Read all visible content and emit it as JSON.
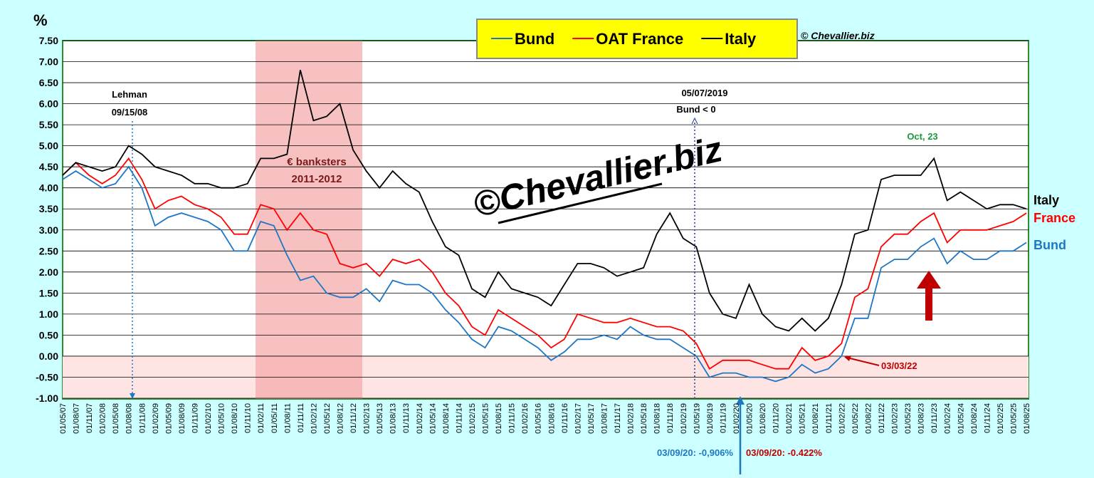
{
  "chart_data": {
    "type": "line",
    "y_unit": "%",
    "categories": [
      "01/05/07",
      "01/08/07",
      "01/11/07",
      "01/02/08",
      "01/05/08",
      "01/08/08",
      "01/11/08",
      "01/02/09",
      "01/05/09",
      "01/08/09",
      "01/11/09",
      "01/02/10",
      "01/05/10",
      "01/08/10",
      "01/11/10",
      "01/02/11",
      "01/05/11",
      "01/08/11",
      "01/11/11",
      "01/02/12",
      "01/05/12",
      "01/08/12",
      "01/11/12",
      "01/02/13",
      "01/05/13",
      "01/08/13",
      "01/11/13",
      "01/02/14",
      "01/05/14",
      "01/08/14",
      "01/11/14",
      "01/02/15",
      "01/05/15",
      "01/08/15",
      "01/11/15",
      "01/02/16",
      "01/05/16",
      "01/08/16",
      "01/11/16",
      "01/02/17",
      "01/05/17",
      "01/08/17",
      "01/11/17",
      "01/02/18",
      "01/05/18",
      "01/08/18",
      "01/11/18",
      "01/02/19",
      "01/05/19",
      "01/08/19",
      "01/11/19",
      "01/02/20",
      "01/05/20",
      "01/08/20",
      "01/11/20",
      "01/02/21",
      "01/05/21",
      "01/08/21",
      "01/11/21",
      "01/02/22",
      "01/05/22",
      "01/08/22",
      "01/11/22",
      "01/02/23",
      "01/05/23",
      "01/08/23",
      "01/11/23",
      "01/02/24",
      "01/05/24",
      "01/08/24",
      "01/11/24",
      "01/02/25",
      "01/05/25",
      "01/08/25"
    ],
    "series": [
      {
        "name": "Bund",
        "color": "#1f77c4",
        "values": [
          4.2,
          4.4,
          4.2,
          4.0,
          4.1,
          4.5,
          4.0,
          3.1,
          3.3,
          3.4,
          3.3,
          3.2,
          3.0,
          2.5,
          2.5,
          3.2,
          3.1,
          2.4,
          1.8,
          1.9,
          1.5,
          1.4,
          1.4,
          1.6,
          1.3,
          1.8,
          1.7,
          1.7,
          1.5,
          1.1,
          0.8,
          0.4,
          0.2,
          0.7,
          0.6,
          0.4,
          0.2,
          -0.1,
          0.1,
          0.4,
          0.4,
          0.5,
          0.4,
          0.7,
          0.5,
          0.4,
          0.4,
          0.2,
          0.0,
          -0.5,
          -0.4,
          -0.4,
          -0.5,
          -0.5,
          -0.6,
          -0.5,
          -0.2,
          -0.4,
          -0.3,
          0.0,
          0.9,
          0.9,
          2.1,
          2.3,
          2.3,
          2.6,
          2.8,
          2.2,
          2.5,
          2.3,
          2.3,
          2.5,
          2.5,
          2.7
        ]
      },
      {
        "name": "OAT France",
        "color": "#ff0000",
        "values": [
          4.3,
          4.6,
          4.3,
          4.1,
          4.3,
          4.7,
          4.2,
          3.5,
          3.7,
          3.8,
          3.6,
          3.5,
          3.3,
          2.9,
          2.9,
          3.6,
          3.5,
          3.0,
          3.4,
          3.0,
          2.9,
          2.2,
          2.1,
          2.2,
          1.9,
          2.3,
          2.2,
          2.3,
          2.0,
          1.5,
          1.2,
          0.7,
          0.5,
          1.1,
          0.9,
          0.7,
          0.5,
          0.2,
          0.4,
          1.0,
          0.9,
          0.8,
          0.8,
          0.9,
          0.8,
          0.7,
          0.7,
          0.6,
          0.3,
          -0.3,
          -0.1,
          -0.1,
          -0.1,
          -0.2,
          -0.3,
          -0.3,
          0.2,
          -0.1,
          0.0,
          0.3,
          1.4,
          1.6,
          2.6,
          2.9,
          2.9,
          3.2,
          3.4,
          2.7,
          3.0,
          3.0,
          3.0,
          3.1,
          3.2,
          3.4
        ]
      },
      {
        "name": "Italy",
        "color": "#000000",
        "values": [
          4.3,
          4.6,
          4.5,
          4.4,
          4.5,
          5.0,
          4.8,
          4.5,
          4.4,
          4.3,
          4.1,
          4.1,
          4.0,
          4.0,
          4.1,
          4.7,
          4.7,
          4.8,
          6.8,
          5.6,
          5.7,
          6.0,
          4.9,
          4.4,
          4.0,
          4.4,
          4.1,
          3.9,
          3.2,
          2.6,
          2.4,
          1.6,
          1.4,
          2.0,
          1.6,
          1.5,
          1.4,
          1.2,
          1.7,
          2.2,
          2.2,
          2.1,
          1.9,
          2.0,
          2.1,
          2.9,
          3.4,
          2.8,
          2.6,
          1.5,
          1.0,
          0.9,
          1.7,
          1.0,
          0.7,
          0.6,
          0.9,
          0.6,
          0.9,
          1.7,
          2.9,
          3.0,
          4.2,
          4.3,
          4.3,
          4.3,
          4.7,
          3.7,
          3.9,
          3.7,
          3.5,
          3.6,
          3.6,
          3.5
        ]
      }
    ],
    "end_labels": [
      "Italy",
      "France",
      "Bund"
    ],
    "ylim": [
      -1,
      7.5
    ],
    "yticks": [
      {
        "value": -1,
        "label": "-1.00"
      },
      {
        "value": -0.5,
        "label": "-0.50"
      },
      {
        "value": 0,
        "label": "0.00"
      },
      {
        "value": 0.5,
        "label": "0.50"
      },
      {
        "value": 1,
        "label": "1.00"
      },
      {
        "value": 1.5,
        "label": "1.50"
      },
      {
        "value": 2,
        "label": "2.00"
      },
      {
        "value": 2.5,
        "label": "2.50"
      },
      {
        "value": 3,
        "label": "3.00"
      },
      {
        "value": 3.5,
        "label": "3.50"
      },
      {
        "value": 4,
        "label": "4.00"
      },
      {
        "value": 4.5,
        "label": "4.50"
      },
      {
        "value": 5,
        "label": "5.00"
      },
      {
        "value": 5.5,
        "label": "5.50"
      },
      {
        "value": 6,
        "label": "6.00"
      },
      {
        "value": 6.5,
        "label": "6.50"
      },
      {
        "value": 7,
        "label": "7.00"
      },
      {
        "value": 7.5,
        "label": "7.50"
      }
    ],
    "grid": true,
    "copyright": "© Chevallier.biz",
    "watermark": "©Chevallier.biz",
    "annotations": {
      "lehman": "Lehman",
      "lehman_date": "09/15/08",
      "banksters": "€ banksters",
      "banksters_years": "2011-2012",
      "bund_date": "05/07/2019",
      "bund_neg": "Bund < 0",
      "oct23": "Oct, 23",
      "date_0322": "03/03/22",
      "bund_low": "03/09/20: -0,906%",
      "oat_low": "03/09/20:  -0.422%"
    }
  }
}
